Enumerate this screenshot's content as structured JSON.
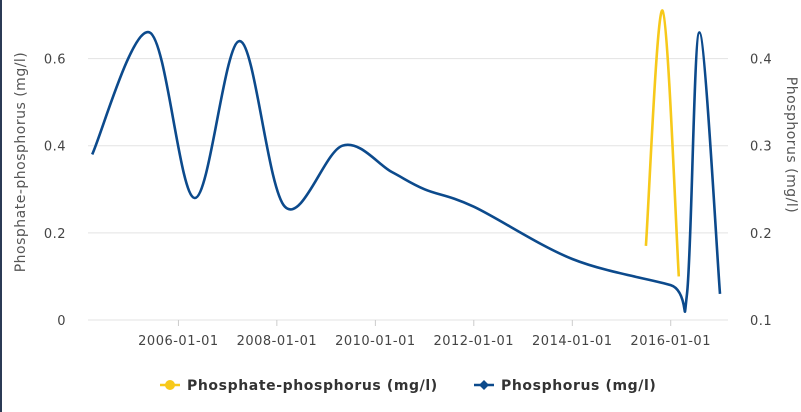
{
  "chart_data": {
    "type": "line",
    "title": "",
    "x": [
      "2004-05-01",
      "2005-06-01",
      "2006-05-01",
      "2007-04-01",
      "2008-03-01",
      "2009-05-01",
      "2010-05-01",
      "2011-01-01",
      "2012-01-01",
      "2014-01-01",
      "2016-01-01",
      "2016-05-01",
      "2016-08-01",
      "2017-01-01"
    ],
    "x_ticks": [
      "2006-01-01",
      "2008-01-01",
      "2010-01-01",
      "2012-01-01",
      "2014-01-01",
      "2016-01-01"
    ],
    "x_domain": [
      "2004-03-01",
      "2017-03-01"
    ],
    "y_left": {
      "label": "Phosphate-phosphorus (mg/l)",
      "ticks": [
        "0",
        "0.2",
        "0.4",
        "0.6"
      ],
      "range": [
        0,
        0.7
      ]
    },
    "y_right": {
      "label": "Phosphorus (mg/l)",
      "ticks": [
        "0.1",
        "0.2",
        "0.3",
        "0.4"
      ],
      "range": [
        0.1,
        0.45
      ]
    },
    "grid": true,
    "legend_position": "bottom",
    "series": [
      {
        "name": "Phosphate-phosphorus (mg/l)",
        "axis": "left",
        "color": "#f7c91a",
        "marker": "circle",
        "points": [
          {
            "x": "2015-07-01",
            "y": 0.17
          },
          {
            "x": "2015-11-01",
            "y": 0.71
          },
          {
            "x": "2016-03-01",
            "y": 0.1
          }
        ]
      },
      {
        "name": "Phosphorus (mg/l)",
        "axis": "right",
        "color": "#0c4a8c",
        "marker": "diamond",
        "points": [
          {
            "x": "2004-04-01",
            "y": 0.29
          },
          {
            "x": "2005-06-01",
            "y": 0.43
          },
          {
            "x": "2006-05-01",
            "y": 0.24
          },
          {
            "x": "2007-04-01",
            "y": 0.42
          },
          {
            "x": "2008-03-01",
            "y": 0.23
          },
          {
            "x": "2009-05-01",
            "y": 0.3
          },
          {
            "x": "2010-05-01",
            "y": 0.27
          },
          {
            "x": "2011-01-01",
            "y": 0.25
          },
          {
            "x": "2012-01-01",
            "y": 0.23
          },
          {
            "x": "2014-01-01",
            "y": 0.17
          },
          {
            "x": "2016-01-01",
            "y": 0.14
          },
          {
            "x": "2016-05-01",
            "y": 0.13
          },
          {
            "x": "2016-08-01",
            "y": 0.43
          },
          {
            "x": "2017-01-01",
            "y": 0.13
          }
        ]
      }
    ]
  }
}
